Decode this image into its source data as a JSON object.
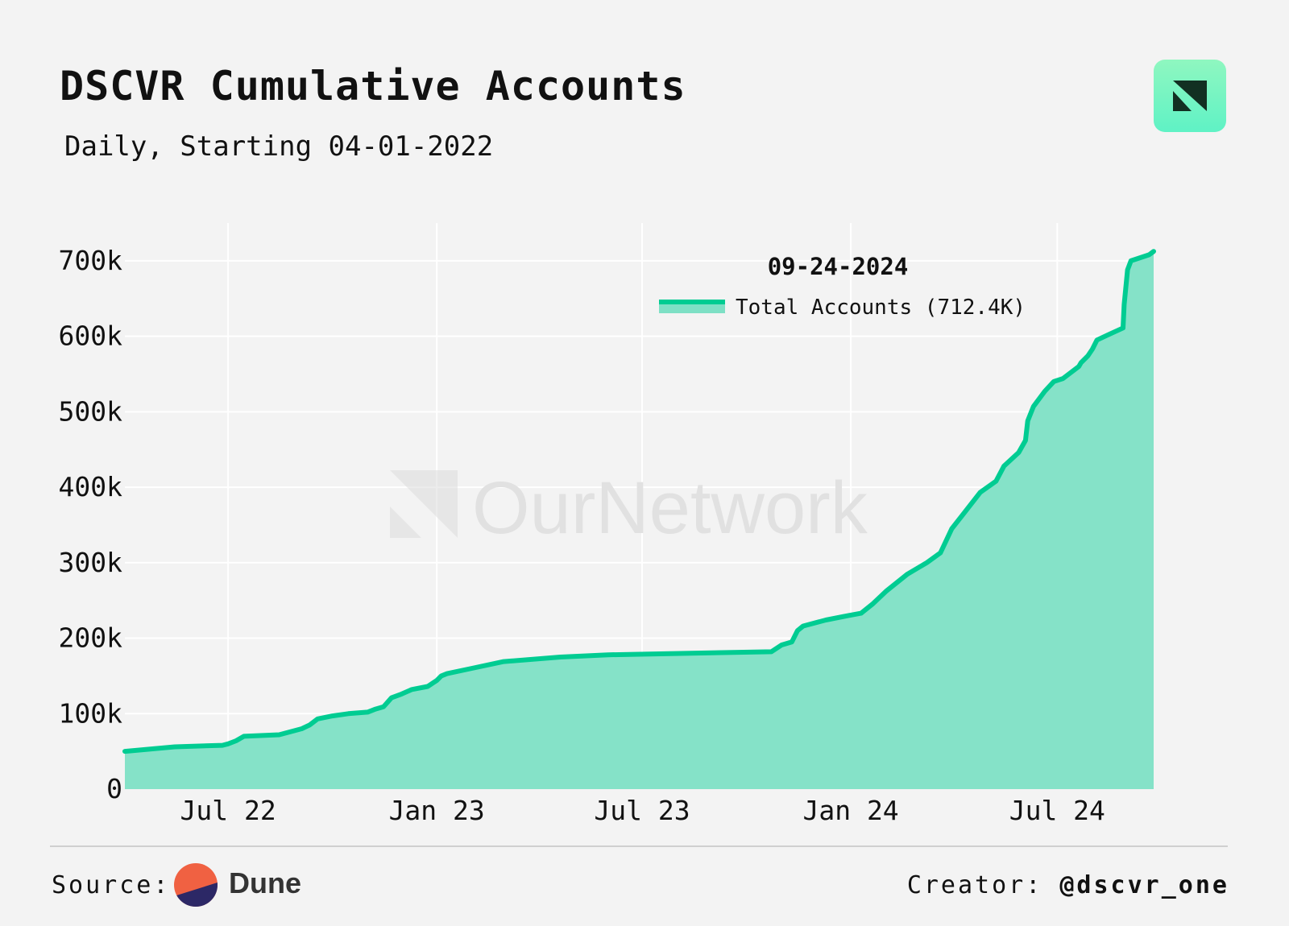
{
  "header": {
    "title": "DSCVR Cumulative Accounts",
    "subtitle": "Daily, Starting 04-01-2022",
    "logo_icon": "ournetwork-logo-icon"
  },
  "watermark": {
    "text": "OurNetwork",
    "icon": "ournetwork-watermark-icon"
  },
  "legend": {
    "date": "09-24-2024",
    "entry": "Total Accounts (712.4K)"
  },
  "footer": {
    "source_label": "Source:",
    "source_name": "Dune",
    "source_icon": "dune-logo-icon",
    "creator_label": "Creator:",
    "creator_handle": "@dscvr_one"
  },
  "colors": {
    "line": "#00cc92",
    "fill": "#7ee0c5",
    "background": "#f3f3f3",
    "grid": "#ffffff",
    "dune_orange": "#f06142",
    "dune_navy": "#2c2866"
  },
  "chart_data": {
    "type": "area",
    "title": "DSCVR Cumulative Accounts",
    "subtitle": "Daily, Starting 04-01-2022",
    "xlabel": "",
    "ylabel": "",
    "x_ticks": [
      "Jul 22",
      "Jan 23",
      "Jul 23",
      "Jan 24",
      "Jul 24"
    ],
    "x_tick_dates": [
      "2022-07-01",
      "2023-01-01",
      "2023-07-01",
      "2024-01-01",
      "2024-07-01"
    ],
    "y_ticks": [
      "0",
      "100k",
      "200k",
      "300k",
      "400k",
      "500k",
      "600k",
      "700k"
    ],
    "y_tick_values": [
      0,
      100000,
      200000,
      300000,
      400000,
      500000,
      600000,
      700000
    ],
    "xlim": [
      "2022-04-01",
      "2024-09-24"
    ],
    "ylim": [
      0,
      750000
    ],
    "grid": true,
    "legend_position": "top-right",
    "series": [
      {
        "name": "Total Accounts",
        "x": [
          "2022-04-01",
          "2022-05-15",
          "2022-06-26",
          "2022-07-01",
          "2022-07-08",
          "2022-07-15",
          "2022-08-15",
          "2022-09-04",
          "2022-09-11",
          "2022-09-18",
          "2022-10-01",
          "2022-10-15",
          "2022-11-01",
          "2022-11-08",
          "2022-11-15",
          "2022-11-22",
          "2022-12-01",
          "2022-12-10",
          "2022-12-24",
          "2022-12-29",
          "2023-01-01",
          "2023-01-05",
          "2023-01-10",
          "2023-02-01",
          "2023-03-01",
          "2023-04-20",
          "2023-06-01",
          "2023-10-23",
          "2023-11-01",
          "2023-11-10",
          "2023-11-15",
          "2023-11-20",
          "2023-12-10",
          "2023-12-30",
          "2024-01-10",
          "2024-01-20",
          "2024-02-01",
          "2024-02-20",
          "2024-03-08",
          "2024-03-20",
          "2024-03-30",
          "2024-04-10",
          "2024-04-24",
          "2024-05-08",
          "2024-05-15",
          "2024-05-28",
          "2024-06-03",
          "2024-06-05",
          "2024-06-10",
          "2024-06-20",
          "2024-06-28",
          "2024-07-06",
          "2024-07-20",
          "2024-07-22",
          "2024-07-28",
          "2024-08-01",
          "2024-08-05",
          "2024-08-15",
          "2024-08-28",
          "2024-08-29",
          "2024-09-01",
          "2024-09-04",
          "2024-09-12",
          "2024-09-20",
          "2024-09-24"
        ],
        "values": [
          50000,
          56000,
          58000,
          60000,
          64000,
          70000,
          72000,
          80000,
          85000,
          93000,
          97000,
          100000,
          102000,
          106000,
          109000,
          121000,
          126000,
          132000,
          136000,
          141000,
          144000,
          150000,
          153000,
          160000,
          169000,
          175000,
          178000,
          182000,
          191000,
          195000,
          210000,
          216000,
          224000,
          230000,
          233000,
          245000,
          262000,
          285000,
          300000,
          313000,
          345000,
          366000,
          393000,
          408000,
          428000,
          446000,
          462000,
          488000,
          507000,
          527000,
          540000,
          544000,
          560000,
          565000,
          574000,
          583000,
          595000,
          602000,
          611000,
          642000,
          688000,
          700000,
          704000,
          708000,
          712400
        ]
      }
    ]
  }
}
